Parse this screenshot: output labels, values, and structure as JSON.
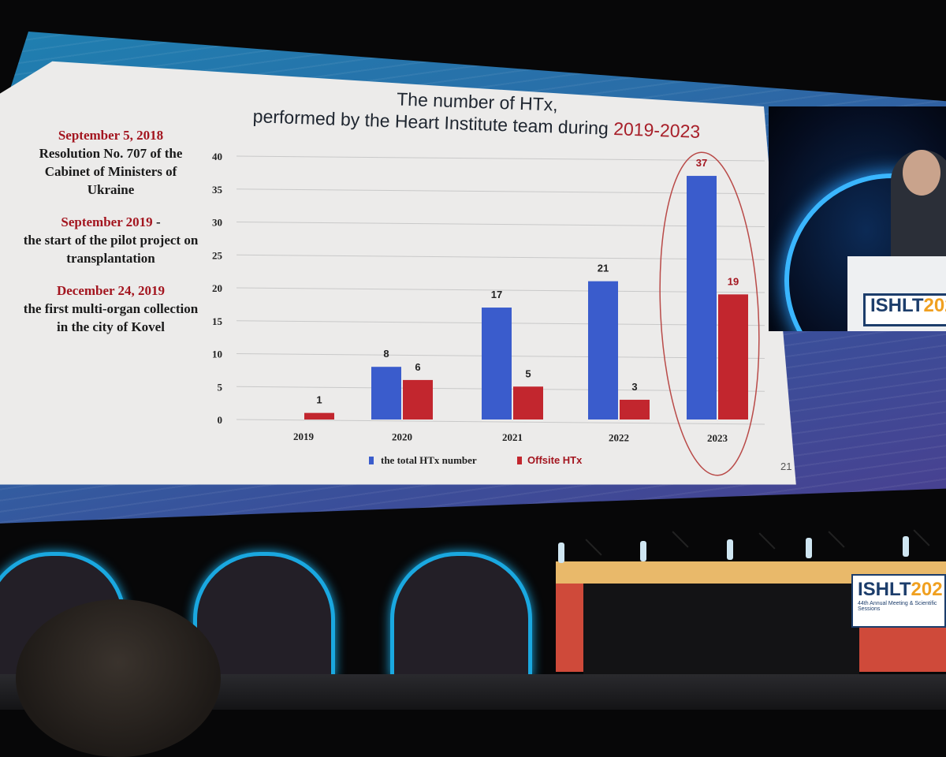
{
  "slide": {
    "title_line1": "The number of HTx,",
    "title_line2_prefix": "performed by the Heart Institute team during ",
    "title_line2_highlight": "2019-2023",
    "page_number": "21",
    "notes": [
      {
        "heading": "September 5, 2018",
        "body": "Resolution No. 707 of the Cabinet of Ministers of Ukraine"
      },
      {
        "heading": "September 2019",
        "suffix": " -",
        "body": "the start of the pilot project on transplantation"
      },
      {
        "heading": "December 24, 2019",
        "body": "the first multi-organ collection in the city of Kovel"
      }
    ]
  },
  "chart_data": {
    "type": "bar",
    "categories": [
      "2019",
      "2020",
      "2021",
      "2022",
      "2023"
    ],
    "series": [
      {
        "name": "the total HTx number",
        "color": "#3a5ccc",
        "values": [
          null,
          8,
          17,
          21,
          37
        ]
      },
      {
        "name": "Offsite HTx",
        "color": "#c2262e",
        "values": [
          1,
          6,
          5,
          3,
          19
        ]
      }
    ],
    "data_labels": {
      "the total HTx number": [
        "",
        "8",
        "17",
        "21",
        "37"
      ],
      "Offsite HTx": [
        "1",
        "6",
        "5",
        "3",
        "19"
      ]
    },
    "ylim": [
      0,
      40
    ],
    "yticks": [
      "0",
      "5",
      "10",
      "15",
      "20",
      "25",
      "30",
      "35",
      "40"
    ],
    "grid": true,
    "legend_position": "bottom",
    "highlight": "2023"
  },
  "venue": {
    "logo_main": "ISHLT",
    "logo_year": "202",
    "logo_sub": "44th Annual Meeting & Scientific Sessions"
  }
}
